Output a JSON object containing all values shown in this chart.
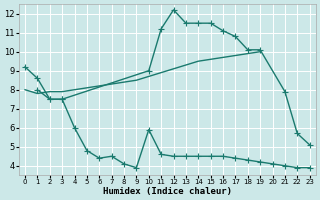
{
  "xlabel": "Humidex (Indice chaleur)",
  "background_color": "#cce8e8",
  "grid_color": "#ffffff",
  "line_color": "#1a7a6e",
  "xlim": [
    -0.5,
    23.5
  ],
  "ylim": [
    3.5,
    12.5
  ],
  "xticks": [
    0,
    1,
    2,
    3,
    4,
    5,
    6,
    7,
    8,
    9,
    10,
    11,
    12,
    13,
    14,
    15,
    16,
    17,
    18,
    19,
    20,
    21,
    22,
    23
  ],
  "yticks": [
    4,
    5,
    6,
    7,
    8,
    9,
    10,
    11,
    12
  ],
  "line1_x": [
    0,
    1,
    2,
    3,
    10,
    11,
    12,
    13,
    14,
    15,
    16,
    17,
    18,
    19,
    21,
    22,
    23
  ],
  "line1_y": [
    9.2,
    8.6,
    7.5,
    7.5,
    9.0,
    11.2,
    12.2,
    11.5,
    11.5,
    11.5,
    11.1,
    10.8,
    10.1,
    10.1,
    7.9,
    5.7,
    5.1
  ],
  "line2_x": [
    0,
    1,
    2,
    3,
    4,
    5,
    6,
    7,
    8,
    9,
    10,
    11,
    12,
    13,
    14,
    15,
    16,
    17,
    18,
    19
  ],
  "line2_y": [
    8.0,
    7.8,
    7.9,
    7.9,
    8.0,
    8.1,
    8.2,
    8.3,
    8.4,
    8.5,
    8.7,
    8.9,
    9.1,
    9.3,
    9.5,
    9.6,
    9.7,
    9.8,
    9.9,
    10.0
  ],
  "line3_x": [
    1,
    2,
    3,
    4,
    5,
    6,
    7,
    8,
    9,
    10,
    11,
    12,
    13,
    14,
    15,
    16,
    17,
    18,
    19,
    20,
    21,
    22,
    23
  ],
  "line3_y": [
    8.0,
    7.5,
    7.5,
    6.0,
    4.8,
    4.4,
    4.5,
    4.1,
    3.9,
    5.9,
    4.6,
    4.5,
    4.5,
    4.5,
    4.5,
    4.5,
    4.4,
    4.3,
    4.2,
    4.1,
    4.0,
    3.9,
    3.9
  ],
  "linewidth": 1.0,
  "marker_size": 4
}
